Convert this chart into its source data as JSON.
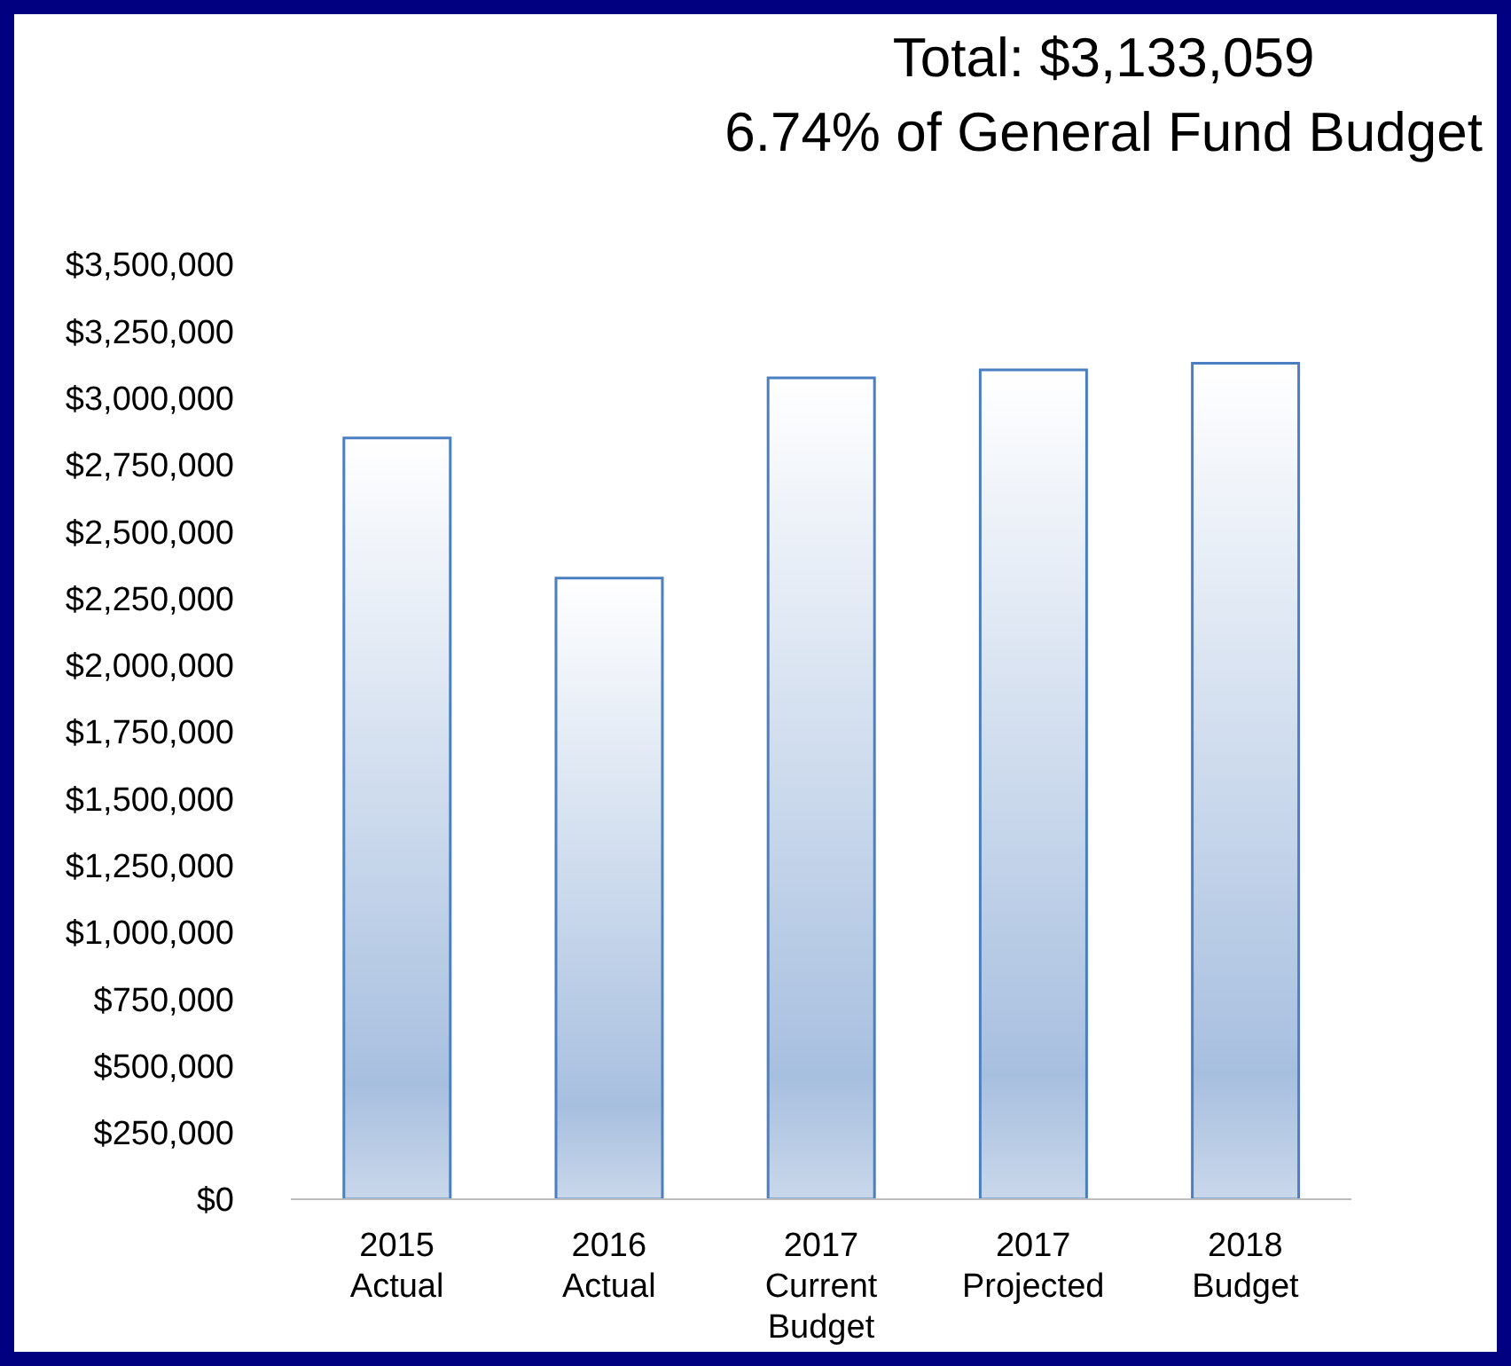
{
  "chart_data": {
    "type": "bar",
    "title": "Total: $3,133,059",
    "subtitle": "6.74% of General Fund Budget",
    "categories": [
      "2015\nActual",
      "2016\nActual",
      "2017\nCurrent\nBudget",
      "2017\nProjected",
      "2018\nBudget"
    ],
    "values": [
      2850000,
      2325000,
      3075000,
      3105000,
      3130000
    ],
    "color": "#4a7fc1",
    "ylim": [
      0,
      3500000
    ],
    "yticks": [
      {
        "value": 0,
        "label": "$0"
      },
      {
        "value": 250000,
        "label": "$250,000"
      },
      {
        "value": 500000,
        "label": "$500,000"
      },
      {
        "value": 750000,
        "label": "$750,000"
      },
      {
        "value": 1000000,
        "label": "$1,000,000"
      },
      {
        "value": 1250000,
        "label": "$1,250,000"
      },
      {
        "value": 1500000,
        "label": "$1,500,000"
      },
      {
        "value": 1750000,
        "label": "$1,750,000"
      },
      {
        "value": 2000000,
        "label": "$2,000,000"
      },
      {
        "value": 2250000,
        "label": "$2,250,000"
      },
      {
        "value": 2500000,
        "label": "$2,500,000"
      },
      {
        "value": 2750000,
        "label": "$2,750,000"
      },
      {
        "value": 3000000,
        "label": "$3,000,000"
      },
      {
        "value": 3250000,
        "label": "$3,250,000"
      },
      {
        "value": 3500000,
        "label": "$3,500,000"
      }
    ],
    "grid": false,
    "legend": false
  }
}
